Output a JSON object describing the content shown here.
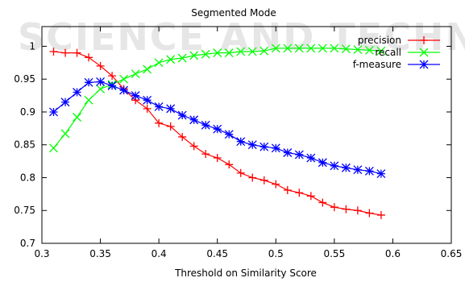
{
  "chart_data": {
    "type": "line",
    "title": "Segmented Mode",
    "xlabel": "Threshold on Similarity Score",
    "ylabel": "",
    "xlim": [
      0.3,
      0.65
    ],
    "ylim": [
      0.7,
      1.03
    ],
    "x_ticks": [
      0.3,
      0.35,
      0.4,
      0.45,
      0.5,
      0.55,
      0.6,
      0.65
    ],
    "x_tick_labels": [
      "0.3",
      "0.35",
      "0.4",
      "0.45",
      "0.5",
      "0.55",
      "0.6",
      "0.65"
    ],
    "y_ticks": [
      0.7,
      0.75,
      0.8,
      0.85,
      0.9,
      0.95,
      1.0
    ],
    "y_tick_labels": [
      "0.7",
      "0.75",
      "0.8",
      "0.85",
      "0.9",
      "0.95",
      "1"
    ],
    "grid": false,
    "legend_position": "top-right",
    "x": [
      0.31,
      0.32,
      0.33,
      0.34,
      0.35,
      0.36,
      0.37,
      0.38,
      0.39,
      0.4,
      0.41,
      0.42,
      0.43,
      0.44,
      0.45,
      0.46,
      0.47,
      0.48,
      0.49,
      0.5,
      0.51,
      0.52,
      0.53,
      0.54,
      0.55,
      0.56,
      0.57,
      0.58,
      0.59
    ],
    "series": [
      {
        "name": "precision",
        "color": "#ff0000",
        "marker": "plus",
        "values": [
          0.992,
          0.99,
          0.99,
          0.983,
          0.97,
          0.955,
          0.935,
          0.918,
          0.905,
          0.883,
          0.878,
          0.862,
          0.848,
          0.836,
          0.83,
          0.82,
          0.807,
          0.8,
          0.796,
          0.79,
          0.781,
          0.777,
          0.772,
          0.762,
          0.755,
          0.752,
          0.75,
          0.746,
          0.743
        ]
      },
      {
        "name": "recall",
        "color": "#00ff00",
        "marker": "cross",
        "values": [
          0.845,
          0.867,
          0.892,
          0.918,
          0.935,
          0.942,
          0.95,
          0.958,
          0.965,
          0.975,
          0.98,
          0.982,
          0.986,
          0.988,
          0.99,
          0.99,
          0.992,
          0.992,
          0.993,
          0.997,
          0.997,
          0.997,
          0.997,
          0.997,
          0.997,
          0.996,
          0.995,
          0.994,
          0.993
        ]
      },
      {
        "name": "f-measure",
        "color": "#0000ff",
        "marker": "star",
        "values": [
          0.9,
          0.915,
          0.93,
          0.945,
          0.946,
          0.94,
          0.933,
          0.925,
          0.918,
          0.908,
          0.905,
          0.895,
          0.888,
          0.88,
          0.874,
          0.866,
          0.855,
          0.85,
          0.847,
          0.845,
          0.838,
          0.835,
          0.83,
          0.823,
          0.818,
          0.815,
          0.812,
          0.81,
          0.806
        ]
      }
    ]
  },
  "watermark": {
    "text": "SCIENCE AND TECHNOLOGY"
  }
}
